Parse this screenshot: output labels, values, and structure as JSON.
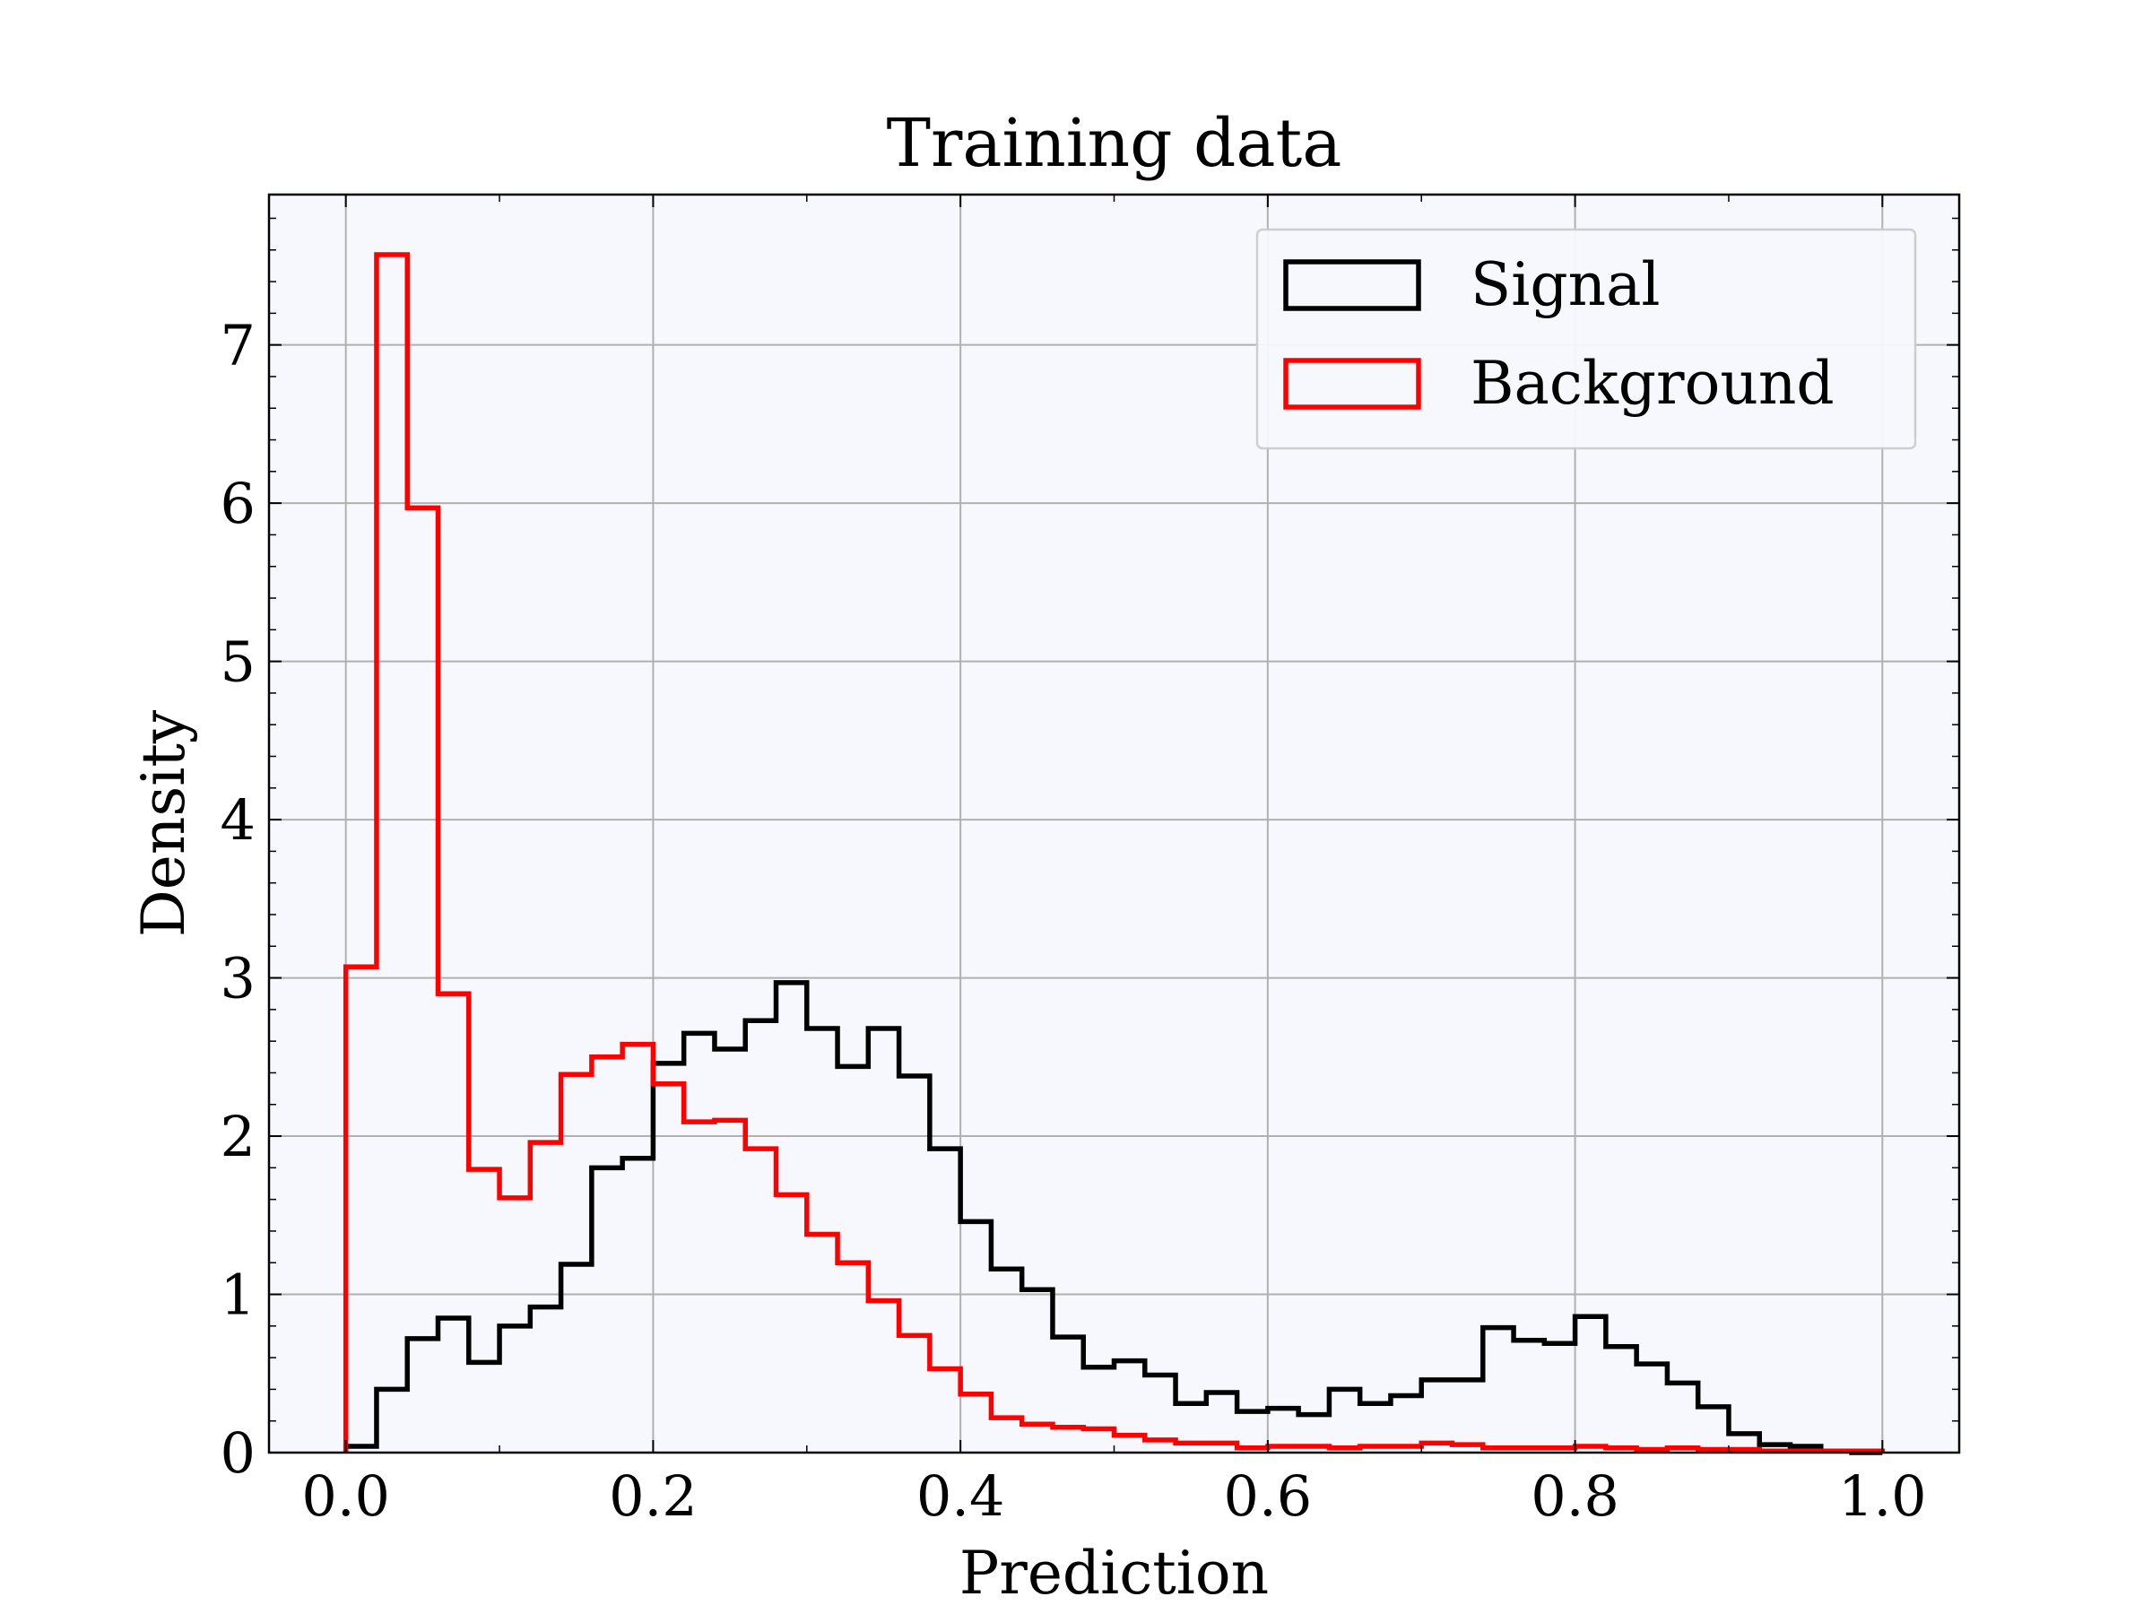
{
  "chart_data": {
    "type": "histogram",
    "title": "Training data",
    "xlabel": "Prediction",
    "ylabel": "Density",
    "xlim": [
      -0.05,
      1.05
    ],
    "ylim": [
      0,
      7.95
    ],
    "xticks": [
      0.0,
      0.2,
      0.4,
      0.6,
      0.8,
      1.0
    ],
    "xtick_labels": [
      "0.0",
      "0.2",
      "0.4",
      "0.6",
      "0.8",
      "1.0"
    ],
    "yticks": [
      0,
      1,
      2,
      3,
      4,
      5,
      6,
      7
    ],
    "ytick_labels": [
      "0",
      "1",
      "2",
      "3",
      "4",
      "5",
      "6",
      "7"
    ],
    "grid": true,
    "legend_position": "top-right",
    "bin_edges": [
      0.0,
      0.02,
      0.04,
      0.06,
      0.08,
      0.1,
      0.12,
      0.14,
      0.16,
      0.18,
      0.2,
      0.22,
      0.24,
      0.26,
      0.28,
      0.3,
      0.32,
      0.34,
      0.36,
      0.38,
      0.4,
      0.42,
      0.44,
      0.46,
      0.48,
      0.5,
      0.52,
      0.54,
      0.56,
      0.58,
      0.6,
      0.62,
      0.64,
      0.66,
      0.68,
      0.7,
      0.72,
      0.74,
      0.76,
      0.78,
      0.8,
      0.82,
      0.84,
      0.86,
      0.88,
      0.9,
      0.92,
      0.94,
      0.96,
      0.98,
      1.0
    ],
    "series": [
      {
        "name": "Signal",
        "color": "#000000",
        "values": [
          0.04,
          0.4,
          0.72,
          0.85,
          0.57,
          0.8,
          0.92,
          1.19,
          1.8,
          1.86,
          2.46,
          2.65,
          2.55,
          2.73,
          2.97,
          2.68,
          2.44,
          2.68,
          2.38,
          1.92,
          1.46,
          1.16,
          1.03,
          0.73,
          0.54,
          0.58,
          0.49,
          0.31,
          0.38,
          0.26,
          0.28,
          0.24,
          0.4,
          0.31,
          0.36,
          0.46,
          0.46,
          0.79,
          0.71,
          0.69,
          0.86,
          0.67,
          0.56,
          0.44,
          0.29,
          0.12,
          0.05,
          0.04,
          0.01,
          0.0
        ]
      },
      {
        "name": "Background",
        "color": "#ff0000",
        "values": [
          3.07,
          7.57,
          5.97,
          2.9,
          1.79,
          1.61,
          1.96,
          2.39,
          2.5,
          2.58,
          2.33,
          2.09,
          2.1,
          1.92,
          1.63,
          1.38,
          1.2,
          0.96,
          0.74,
          0.53,
          0.37,
          0.22,
          0.18,
          0.16,
          0.15,
          0.11,
          0.08,
          0.06,
          0.06,
          0.03,
          0.04,
          0.04,
          0.03,
          0.04,
          0.04,
          0.06,
          0.05,
          0.03,
          0.03,
          0.03,
          0.04,
          0.03,
          0.02,
          0.03,
          0.02,
          0.02,
          0.01,
          0.01,
          0.01,
          0.01
        ]
      }
    ]
  }
}
